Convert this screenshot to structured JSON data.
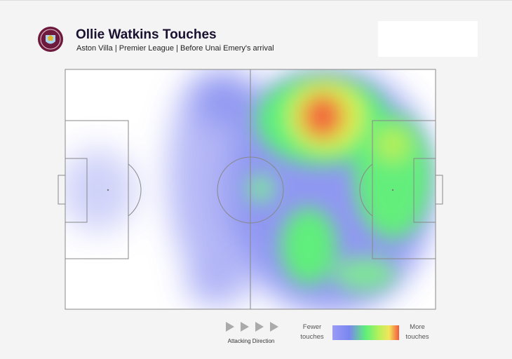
{
  "header": {
    "title": "Ollie Watkins Touches",
    "subtitle": "Aston Villa | Premier League | Before Unai Emery's arrival"
  },
  "footer": {
    "direction": "Attacking Direction",
    "legend_low": "Fewer touches",
    "legend_high": "More touches"
  }
}
